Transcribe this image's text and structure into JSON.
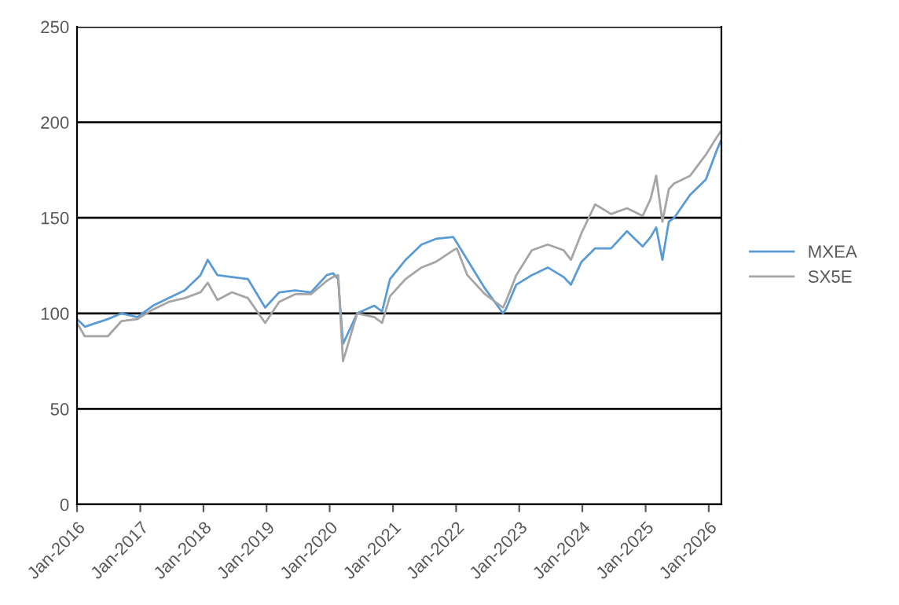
{
  "chart_data": {
    "type": "line",
    "x": [
      "2016-01-01",
      "2016-02-15",
      "2016-06-27",
      "2016-09-15",
      "2016-12-15",
      "2017-03-15",
      "2017-06-15",
      "2017-09-15",
      "2017-12-15",
      "2018-01-26",
      "2018-03-23",
      "2018-06-15",
      "2018-09-15",
      "2018-12-24",
      "2019-03-15",
      "2019-06-15",
      "2019-09-15",
      "2019-12-15",
      "2020-01-20",
      "2020-02-19",
      "2020-03-18",
      "2020-06-08",
      "2020-09-15",
      "2020-10-30",
      "2020-12-15",
      "2021-03-15",
      "2021-06-15",
      "2021-09-07",
      "2021-12-15",
      "2022-01-05",
      "2022-03-07",
      "2022-06-17",
      "2022-09-29",
      "2022-10-15",
      "2022-12-15",
      "2023-03-15",
      "2023-06-15",
      "2023-09-15",
      "2023-10-27",
      "2023-12-27",
      "2024-03-15",
      "2024-06-15",
      "2024-09-15",
      "2024-12-15",
      "2025-01-30",
      "2025-03-03",
      "2025-04-08",
      "2025-05-15",
      "2025-06-15",
      "2025-09-15",
      "2025-12-15",
      "2026-02-15",
      "2026-03-10"
    ],
    "series": [
      {
        "name": "MXEA",
        "color": "#5b9bd5",
        "values": [
          97,
          93,
          97,
          100,
          98,
          104,
          108,
          112,
          120,
          128,
          120,
          119,
          118,
          103,
          111,
          112,
          111,
          120,
          121,
          118,
          84,
          100,
          104,
          101,
          118,
          128,
          136,
          139,
          140,
          137,
          128,
          113,
          100,
          102,
          115,
          120,
          124,
          119,
          115,
          127,
          134,
          134,
          143,
          135,
          140,
          145,
          128,
          148,
          150,
          162,
          170,
          185,
          190
        ]
      },
      {
        "name": "SX5E",
        "color": "#a5a5a5",
        "values": [
          95,
          88,
          88,
          96,
          97,
          102,
          106,
          108,
          111,
          116,
          107,
          111,
          108,
          95,
          106,
          110,
          110,
          117,
          119,
          120,
          75,
          100,
          98,
          95,
          109,
          118,
          124,
          127,
          133,
          134,
          120,
          110,
          103,
          106,
          120,
          133,
          136,
          133,
          128,
          142,
          157,
          152,
          155,
          151,
          160,
          172,
          148,
          165,
          168,
          172,
          183,
          192,
          195
        ]
      }
    ],
    "xlim": [
      "2016-01-01",
      "2026-03-15"
    ],
    "xticks": [
      {
        "value": "2016-01-01",
        "label": "Jan-2016"
      },
      {
        "value": "2017-01-01",
        "label": "Jan-2017"
      },
      {
        "value": "2018-01-01",
        "label": "Jan-2018"
      },
      {
        "value": "2019-01-01",
        "label": "Jan-2019"
      },
      {
        "value": "2020-01-01",
        "label": "Jan-2020"
      },
      {
        "value": "2021-01-01",
        "label": "Jan-2021"
      },
      {
        "value": "2022-01-01",
        "label": "Jan-2022"
      },
      {
        "value": "2023-01-01",
        "label": "Jan-2023"
      },
      {
        "value": "2024-01-01",
        "label": "Jan-2024"
      },
      {
        "value": "2025-01-01",
        "label": "Jan-2025"
      },
      {
        "value": "2026-01-01",
        "label": "Jan-2026"
      }
    ],
    "ylim": [
      0,
      250
    ],
    "yticks": [
      0,
      50,
      100,
      150,
      200,
      250
    ],
    "grid": "y",
    "legend": "right",
    "marker": "none",
    "line_style": "solid"
  }
}
